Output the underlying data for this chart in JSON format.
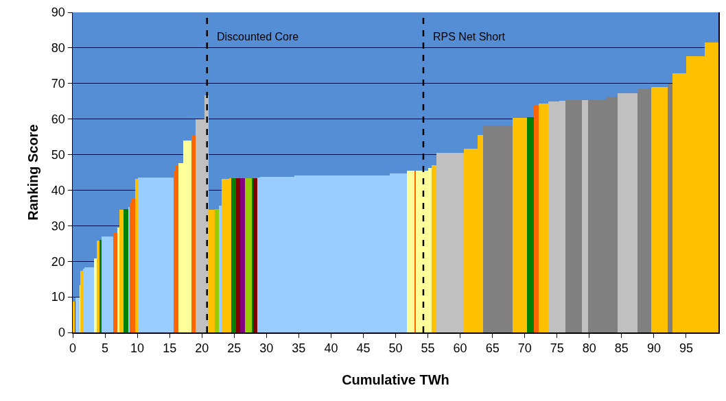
{
  "chart_data": {
    "type": "bar",
    "xlabel": "Cumulative TWh",
    "ylabel": "Ranking Score",
    "x": [
      0.175,
      0.405,
      0.76,
      1.13,
      1.4,
      1.685,
      2.535,
      3.51,
      3.95,
      4.305,
      5.37,
      6.61,
      7.07,
      7.53,
      8.2,
      8.68,
      8.97,
      9.415,
      9.89,
      12.85,
      15.75,
      16.15,
      16.75,
      17.75,
      18.7,
      19.7,
      20.7,
      21.525,
      22.325,
      22.85,
      23.65,
      24.4,
      24.95,
      25.6,
      26.3,
      27.2,
      27.85,
      28.3,
      28.8,
      31.65,
      41.7,
      50.4,
      52.3,
      53.0,
      54.05,
      55.3,
      55.95,
      58.45,
      61.65,
      63.15,
      65.85,
      69.25,
      70.9,
      71.8,
      72.9,
      74.45,
      75.8,
      77.6,
      79.35,
      81.2,
      83.5,
      85.95,
      88.55,
      90.85,
      92.5,
      93.95,
      96.45,
      98.95
    ],
    "values": [
      8.7,
      8.7,
      9.8,
      13.3,
      17.3,
      17.9,
      18.3,
      20.9,
      25.9,
      26.0,
      26.9,
      28.2,
      29.5,
      34.5,
      34.6,
      35.3,
      36.7,
      37.8,
      43.1,
      43.6,
      45.4,
      46.8,
      47.6,
      54.0,
      55.3,
      60.0,
      66.7,
      34.5,
      34.6,
      35.6,
      43.1,
      43.3,
      43.3,
      43.3,
      43.3,
      43.3,
      43.3,
      43.3,
      43.5,
      43.7,
      44.2,
      44.7,
      45.4,
      45.5,
      45.5,
      46.3,
      47.1,
      50.4,
      51.7,
      55.6,
      58.2,
      60.4,
      60.5,
      63.7,
      64.3,
      64.9,
      65.2,
      65.3,
      65.4,
      65.6,
      66.3,
      67.2,
      68.7,
      69.0,
      70.0,
      72.9,
      77.6,
      81.5
    ],
    "colors": [
      "#ffc000",
      "#008000",
      "#99ccff",
      "#ffff99",
      "#ffc000",
      "#99ccff",
      "#99ccff",
      "#ffff99",
      "#ffc000",
      "#008000",
      "#99ccff",
      "#ff6600",
      "#ffff99",
      "#ffc000",
      "#008000",
      "#99ccff",
      "#ff6600",
      "#ff6600",
      "#ffc000",
      "#99ccff",
      "#ff6600",
      "#ff6600",
      "#ffff99",
      "#ffff99",
      "#ff6600",
      "#c0c0c0",
      "#c0c0c0",
      "#ffc000",
      "#99cc00",
      "#99ccff",
      "#ffc000",
      "#ffc000",
      "#008000",
      "#800000",
      "#800080",
      "#99cc00",
      "#008000",
      "#800000",
      "#99ccff",
      "#99ccff",
      "#99ccff",
      "#99ccff",
      "#ffff99",
      "#ff6600",
      "#ffff99",
      "#ffff99",
      "#ffc000",
      "#c0c0c0",
      "#ffc000",
      "#ffc000",
      "#808080",
      "#ffc000",
      "#008000",
      "#ff6600",
      "#ffc000",
      "#c0c0c0",
      "#c0c0c0",
      "#808080",
      "#c0c0c0",
      "#808080",
      "#808080",
      "#c0c0c0",
      "#808080",
      "#ffc000",
      "#808080",
      "#ffc000",
      "#ffc000",
      "#ffc000"
    ],
    "xlim": [
      0,
      100
    ],
    "xticks": [
      0,
      5,
      10,
      15,
      20,
      25,
      30,
      35,
      40,
      45,
      50,
      55,
      60,
      65,
      70,
      75,
      80,
      85,
      90,
      95
    ],
    "ylim": [
      0,
      90
    ],
    "yticks": [
      0,
      10,
      20,
      30,
      40,
      50,
      60,
      70,
      80,
      90
    ],
    "grid": "y",
    "ref_lines": [
      {
        "axis": "x",
        "value": 20.8,
        "label": "Discounted Core",
        "line_style": "dashed",
        "color": "#000000"
      },
      {
        "axis": "x",
        "value": 54.3,
        "label": "RPS Net Short",
        "line_style": "dashed",
        "color": "#000000"
      }
    ]
  }
}
